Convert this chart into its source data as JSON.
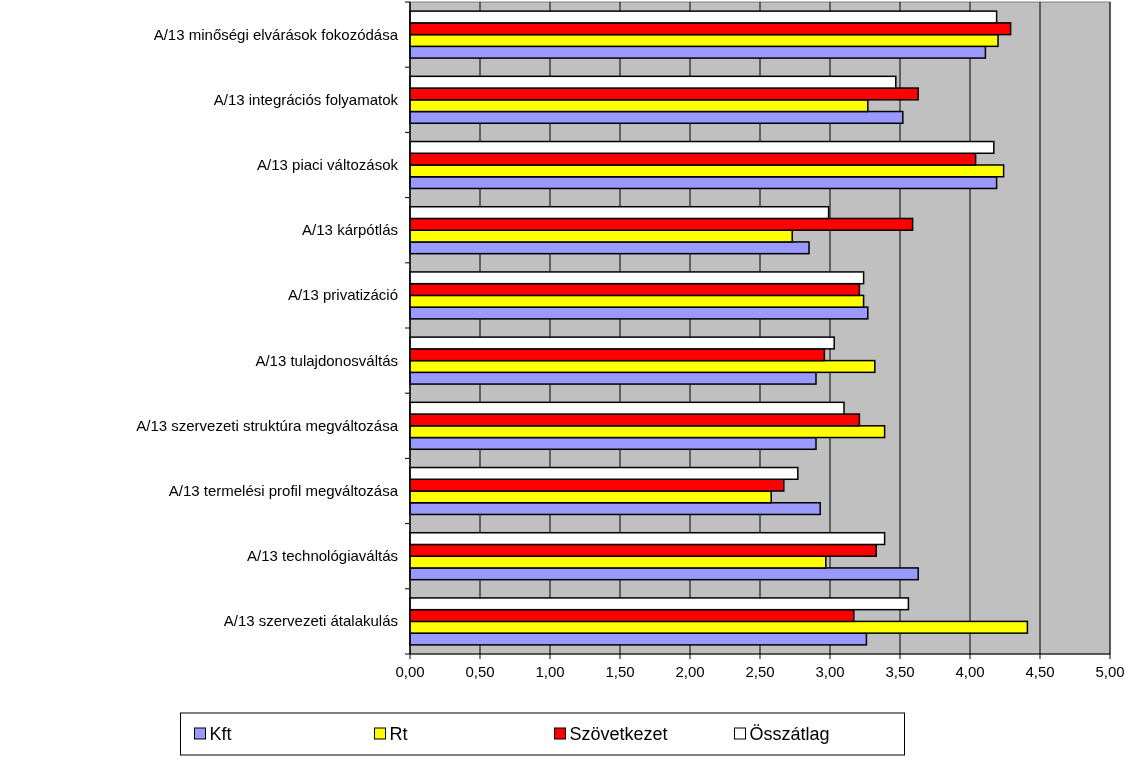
{
  "chart_data": {
    "type": "bar",
    "orientation": "horizontal",
    "categories": [
      "A/13  minőségi elvárások fokozódása",
      "A/13  integrációs folyamatok",
      "A/13  piaci változások",
      "A/13  kárpótlás",
      "A/13  privatizáció",
      "A/13  tulajdonosváltás",
      "A/13  szervezeti struktúra megváltozása",
      "A/13  termelési profil megváltozása",
      "A/13  technológiaváltás",
      "A/13  szervezeti átalakulás"
    ],
    "series": [
      {
        "name": "Kft",
        "color": "#9999ff",
        "values": [
          4.11,
          3.52,
          4.19,
          2.85,
          3.27,
          2.9,
          2.9,
          2.93,
          3.63,
          3.26
        ]
      },
      {
        "name": "Rt",
        "color": "#ffff00",
        "values": [
          4.2,
          3.27,
          4.24,
          2.73,
          3.24,
          3.32,
          3.39,
          2.58,
          2.97,
          4.41
        ]
      },
      {
        "name": "Szövetkezet",
        "color": "#ff0000",
        "values": [
          4.29,
          3.63,
          4.04,
          3.59,
          3.21,
          2.96,
          3.21,
          2.67,
          3.33,
          3.17
        ]
      },
      {
        "name": "Összátlag",
        "color": "#ffffff",
        "values": [
          4.19,
          3.47,
          4.17,
          2.99,
          3.24,
          3.03,
          3.1,
          2.77,
          3.39,
          3.56
        ]
      }
    ],
    "xlim": [
      0,
      5
    ],
    "xticks": [
      {
        "value": 0,
        "label": "0,00"
      },
      {
        "value": 0.5,
        "label": "0,50"
      },
      {
        "value": 1,
        "label": "1,00"
      },
      {
        "value": 1.5,
        "label": "1,50"
      },
      {
        "value": 2,
        "label": "2,00"
      },
      {
        "value": 2.5,
        "label": "2,50"
      },
      {
        "value": 3,
        "label": "3,00"
      },
      {
        "value": 3.5,
        "label": "3,50"
      },
      {
        "value": 4,
        "label": "4,00"
      },
      {
        "value": 4.5,
        "label": "4,50"
      },
      {
        "value": 5,
        "label": "5,00"
      }
    ],
    "grid": "x",
    "legend": "bottom"
  }
}
